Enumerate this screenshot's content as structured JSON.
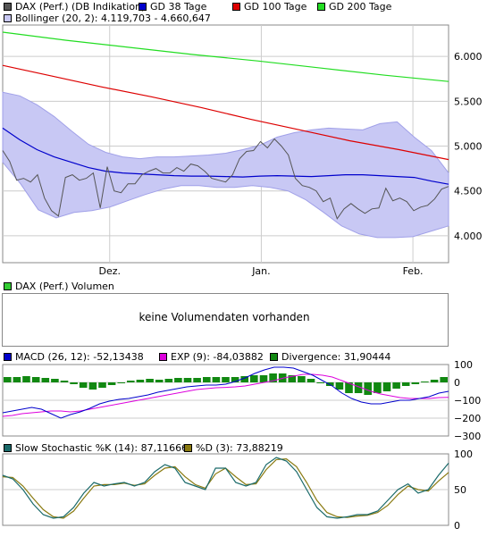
{
  "colors": {
    "price": "#555555",
    "gd38": "#0000cc",
    "gd100": "#dd0000",
    "gd200": "#22dd22",
    "bollinger_fill": "#c8c8f4",
    "bollinger_stroke": "#a0a0e8",
    "volume": "#33cc33",
    "macd": "#0000cc",
    "exp": "#dd00dd",
    "divergence": "#118811",
    "stoch_k": "#1a6a6a",
    "stoch_d": "#8a7a10",
    "grid": "#cccccc"
  },
  "chart_data": [
    {
      "type": "line",
      "panel": "price",
      "legend": [
        {
          "label": "DAX (Perf.) (DB Indikation)",
          "color": "#555555"
        },
        {
          "label": "GD 38 Tage",
          "color": "#0000cc"
        },
        {
          "label": "GD 100 Tage",
          "color": "#dd0000"
        },
        {
          "label": "GD 200 Tage",
          "color": "#22dd22"
        },
        {
          "label": "Bollinger (20, 2): 4.119,703 - 4.660,647",
          "color": "#c8c8f4"
        }
      ],
      "x_labels": [
        "Dez.",
        "Jan.",
        "Feb."
      ],
      "x_label_positions": [
        0.24,
        0.58,
        0.92
      ],
      "y_ticks": [
        4000,
        4500,
        5000,
        5500,
        6000
      ],
      "y_tick_labels": [
        "4.000",
        "4.500",
        "5.000",
        "5.500",
        "6.000"
      ],
      "ylim": [
        3700,
        6350
      ],
      "series": [
        {
          "name": "DAX (Perf.) (DB Indikation)",
          "values": [
            4950,
            4830,
            4620,
            4640,
            4600,
            4680,
            4420,
            4280,
            4220,
            4650,
            4680,
            4620,
            4640,
            4700,
            4310,
            4770,
            4500,
            4480,
            4580,
            4580,
            4680,
            4720,
            4750,
            4700,
            4700,
            4760,
            4720,
            4800,
            4780,
            4720,
            4640,
            4620,
            4600,
            4680,
            4860,
            4940,
            4950,
            5050,
            4980,
            5080,
            5000,
            4900,
            4640,
            4560,
            4540,
            4500,
            4380,
            4420,
            4190,
            4300,
            4360,
            4300,
            4250,
            4300,
            4310,
            4530,
            4390,
            4420,
            4380,
            4280,
            4320,
            4340,
            4410,
            4520,
            4550
          ]
        },
        {
          "name": "GD 38 Tage",
          "values": [
            5200,
            5070,
            4960,
            4880,
            4820,
            4760,
            4720,
            4700,
            4690,
            4680,
            4670,
            4665,
            4665,
            4660,
            4655,
            4665,
            4670,
            4665,
            4660,
            4670,
            4680,
            4680,
            4670,
            4660,
            4650,
            4610,
            4575
          ]
        },
        {
          "name": "GD 100 Tage",
          "values": [
            5900,
            5780,
            5660,
            5550,
            5430,
            5300,
            5180,
            5060,
            4960,
            4850
          ]
        },
        {
          "name": "GD 200 Tage",
          "values": [
            6270,
            6180,
            6100,
            6020,
            5950,
            5870,
            5790,
            5720
          ]
        },
        {
          "name": "Bollinger upper",
          "values": [
            5600,
            5560,
            5460,
            5330,
            5170,
            5020,
            4930,
            4880,
            4860,
            4880,
            4880,
            4890,
            4900,
            4920,
            4960,
            5010,
            5100,
            5150,
            5180,
            5200,
            5190,
            5180,
            5250,
            5270,
            5100,
            4950,
            4700
          ]
        },
        {
          "name": "Bollinger lower",
          "values": [
            4820,
            4580,
            4290,
            4200,
            4260,
            4280,
            4320,
            4390,
            4460,
            4520,
            4560,
            4560,
            4540,
            4540,
            4560,
            4540,
            4500,
            4400,
            4260,
            4110,
            4020,
            3980,
            3980,
            3990,
            4050,
            4110
          ]
        }
      ]
    },
    {
      "type": "bar",
      "panel": "volume",
      "legend": [
        {
          "label": "DAX (Perf.) Volumen",
          "color": "#33cc33"
        }
      ],
      "message": "keine Volumendaten vorhanden"
    },
    {
      "type": "line",
      "panel": "macd",
      "legend": [
        {
          "label": "MACD (26, 12): -52,13438",
          "color": "#0000cc"
        },
        {
          "label": "EXP (9): -84,03882",
          "color": "#dd00dd"
        },
        {
          "label": "Divergence: 31,90444",
          "color": "#118811"
        }
      ],
      "y_ticks": [
        100,
        0,
        -100,
        -200,
        -300
      ],
      "y_tick_labels": [
        "100",
        "0",
        "−100",
        "−200",
        "−300"
      ],
      "ylim": [
        -300,
        100
      ],
      "series": [
        {
          "name": "MACD",
          "values": [
            -170,
            -160,
            -150,
            -140,
            -150,
            -175,
            -200,
            -180,
            -165,
            -145,
            -120,
            -105,
            -95,
            -90,
            -80,
            -70,
            -55,
            -45,
            -35,
            -25,
            -20,
            -15,
            -15,
            -10,
            5,
            25,
            50,
            70,
            85,
            85,
            80,
            60,
            40,
            10,
            -20,
            -60,
            -90,
            -110,
            -120,
            -120,
            -110,
            -100,
            -100,
            -90,
            -80,
            -60,
            -50
          ]
        },
        {
          "name": "EXP",
          "values": [
            -190,
            -185,
            -175,
            -170,
            -165,
            -160,
            -160,
            -165,
            -160,
            -150,
            -140,
            -130,
            -120,
            -110,
            -100,
            -90,
            -80,
            -70,
            -60,
            -50,
            -40,
            -35,
            -30,
            -28,
            -25,
            -20,
            -10,
            0,
            10,
            25,
            35,
            45,
            45,
            40,
            30,
            10,
            -10,
            -30,
            -50,
            -65,
            -75,
            -85,
            -90,
            -90,
            -90,
            -85,
            -84
          ]
        },
        {
          "name": "Divergence",
          "values": [
            30,
            30,
            35,
            30,
            25,
            20,
            10,
            -10,
            -30,
            -40,
            -30,
            -15,
            0,
            10,
            15,
            20,
            15,
            20,
            25,
            25,
            25,
            30,
            30,
            30,
            30,
            35,
            40,
            40,
            50,
            50,
            40,
            35,
            20,
            0,
            -20,
            -40,
            -60,
            -60,
            -70,
            -60,
            -50,
            -35,
            -20,
            -10,
            5,
            15,
            30
          ]
        }
      ]
    },
    {
      "type": "line",
      "panel": "stochastic",
      "legend": [
        {
          "label": "Slow Stochastic %K (14): 87,11666",
          "color": "#1a6a6a"
        },
        {
          "label": "%D (3): 73,88219",
          "color": "#8a7a10"
        }
      ],
      "y_ticks": [
        100,
        50,
        0
      ],
      "y_tick_labels": [
        "100",
        "50",
        "0"
      ],
      "ylim": [
        0,
        100
      ],
      "series": [
        {
          "name": "Slow Stochastic %K (14)",
          "values": [
            70,
            65,
            50,
            30,
            15,
            10,
            12,
            25,
            45,
            60,
            55,
            58,
            60,
            55,
            60,
            75,
            85,
            80,
            60,
            55,
            50,
            80,
            80,
            60,
            55,
            60,
            85,
            95,
            90,
            75,
            50,
            25,
            12,
            10,
            12,
            15,
            15,
            20,
            35,
            50,
            58,
            45,
            50,
            70,
            87
          ]
        },
        {
          "name": "%D (3)",
          "values": [
            68,
            67,
            55,
            38,
            22,
            12,
            10,
            20,
            38,
            55,
            57,
            57,
            59,
            56,
            58,
            70,
            80,
            82,
            68,
            57,
            52,
            72,
            80,
            68,
            57,
            58,
            78,
            92,
            93,
            82,
            60,
            35,
            18,
            12,
            11,
            13,
            14,
            18,
            28,
            43,
            55,
            50,
            48,
            62,
            74
          ]
        }
      ]
    }
  ]
}
